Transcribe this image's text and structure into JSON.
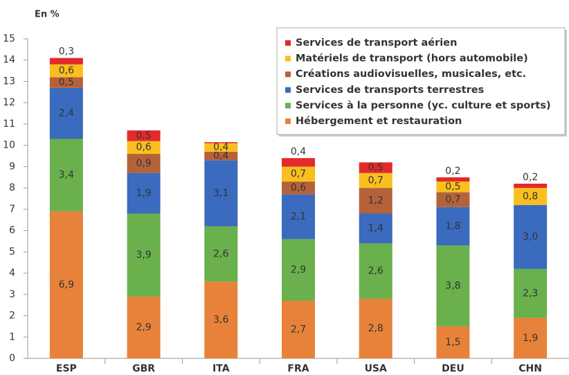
{
  "chart_data": {
    "type": "stacked_bar",
    "ylabel": "En %",
    "categories": [
      "ESP",
      "GBR",
      "ITA",
      "FRA",
      "USA",
      "DEU",
      "CHN"
    ],
    "series": [
      {
        "name": "Hébergement et restauration",
        "color": "#e8823a",
        "values": [
          6.9,
          2.9,
          3.6,
          2.7,
          2.8,
          1.5,
          1.9
        ],
        "value_labels": [
          "6,9",
          "2,9",
          "3,6",
          "2,7",
          "2,8",
          "1,5",
          "1,9"
        ]
      },
      {
        "name": "Services à la personne (yc. culture et sports)",
        "color": "#6ab04c",
        "values": [
          3.4,
          3.9,
          2.6,
          2.9,
          2.6,
          3.8,
          2.3
        ],
        "value_labels": [
          "3,4",
          "3,9",
          "2,6",
          "2,9",
          "2,6",
          "3,8",
          "2,3"
        ]
      },
      {
        "name": "Services de transports terrestres",
        "color": "#3a6bbf",
        "values": [
          2.4,
          1.9,
          3.1,
          2.1,
          1.4,
          1.8,
          3.0
        ],
        "value_labels": [
          "2,4",
          "1,9",
          "3,1",
          "2,1",
          "1,4",
          "1,8",
          "3,0"
        ]
      },
      {
        "name": "Créations audiovisuelles, musicales, etc.",
        "color": "#b5623a",
        "values": [
          0.5,
          0.9,
          0.4,
          0.6,
          1.2,
          0.7,
          null
        ],
        "value_labels": [
          "0,5",
          "0,9",
          "0,4",
          "0,6",
          "1,2",
          "0,7",
          null
        ]
      },
      {
        "name": "Matériels de transport (hors automobile)",
        "color": "#f9bf1e",
        "values": [
          0.6,
          0.6,
          0.4,
          0.7,
          0.7,
          0.5,
          0.8
        ],
        "value_labels": [
          "0,6",
          "0,6",
          "0,4",
          "0,7",
          "0,7",
          "0,5",
          "0,8"
        ]
      },
      {
        "name": "Services de transport aérien",
        "color": "#e32a2a",
        "values": [
          0.3,
          0.5,
          0.05,
          0.4,
          0.5,
          0.2,
          0.2
        ],
        "value_labels": [
          "0,3",
          "0,5",
          null,
          "0,4",
          "0,5",
          "0,2",
          "0,2"
        ]
      }
    ],
    "ylim": [
      0,
      15
    ],
    "yticks": [
      0,
      1,
      2,
      3,
      4,
      5,
      6,
      7,
      8,
      9,
      10,
      11,
      12,
      13,
      14,
      15
    ],
    "grid": false,
    "legend": "top-right"
  }
}
